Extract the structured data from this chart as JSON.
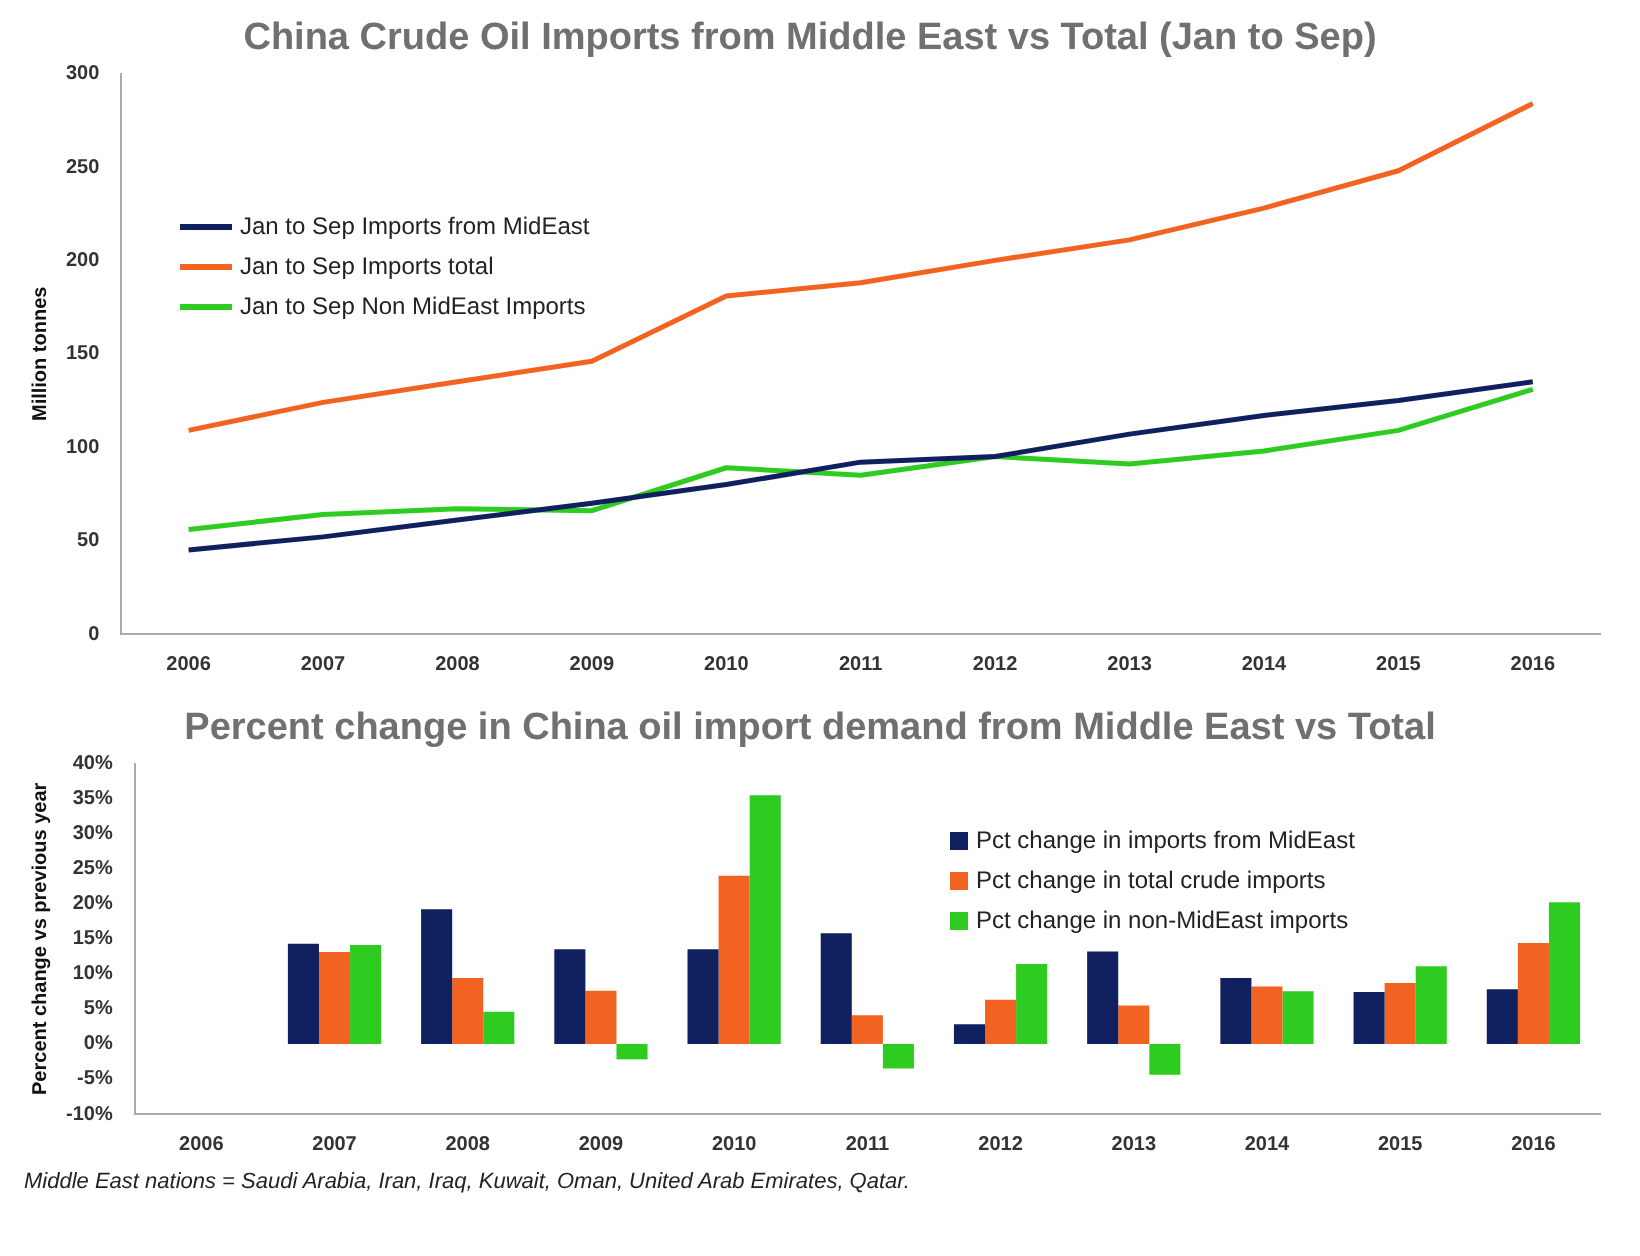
{
  "chart_data": [
    {
      "type": "line",
      "title": "China Crude Oil Imports from Middle East vs Total (Jan to Sep)",
      "ylabel": "Million tonnes",
      "categories": [
        "2006",
        "2007",
        "2008",
        "2009",
        "2010",
        "2011",
        "2012",
        "2013",
        "2014",
        "2015",
        "2016"
      ],
      "series": [
        {
          "name": "Jan to Sep Imports from MidEast",
          "color": "#10205e",
          "values": [
            45,
            52,
            61,
            70,
            80,
            92,
            95,
            107,
            117,
            125,
            135
          ]
        },
        {
          "name": "Jan to Sep Imports total",
          "color": "#f26322",
          "values": [
            109,
            124,
            135,
            146,
            181,
            188,
            200,
            211,
            228,
            248,
            284
          ]
        },
        {
          "name": "Jan to Sep Non MidEast Imports",
          "color": "#2ecc20",
          "values": [
            56,
            64,
            67,
            66,
            89,
            85,
            95,
            91,
            98,
            109,
            131
          ]
        }
      ],
      "ylim": [
        0,
        300
      ],
      "yticks": [
        0,
        50,
        100,
        150,
        200,
        250,
        300
      ],
      "grid": false,
      "legend": "top left",
      "marker": "none"
    },
    {
      "type": "bar",
      "title": "Percent change in China oil import demand from Middle East vs Total",
      "ylabel": "Percent change vs previous year",
      "categories": [
        "2006",
        "2007",
        "2008",
        "2009",
        "2010",
        "2011",
        "2012",
        "2013",
        "2014",
        "2015",
        "2016"
      ],
      "series": [
        {
          "name": "Pct change in imports from MidEast",
          "color": "#10205e",
          "values": [
            null,
            14.3,
            19.2,
            13.5,
            13.5,
            15.8,
            2.8,
            13.2,
            9.4,
            7.4,
            7.8
          ]
        },
        {
          "name": "Pct change in total crude imports",
          "color": "#f26322",
          "values": [
            null,
            13.1,
            9.4,
            7.6,
            24,
            4.1,
            6.3,
            5.5,
            8.2,
            8.7,
            14.4
          ]
        },
        {
          "name": "Pct change in non-MidEast imports",
          "color": "#2ecc20",
          "values": [
            null,
            14.1,
            4.6,
            -2.2,
            35.5,
            -3.5,
            11.4,
            -4.4,
            7.5,
            11.1,
            20.2
          ]
        }
      ],
      "ylim": [
        -10,
        40
      ],
      "yticks": [
        {
          "value": -10,
          "label": "-10%"
        },
        {
          "value": -5,
          "label": "-5%"
        },
        {
          "value": 0,
          "label": "0%"
        },
        {
          "value": 5,
          "label": "5%"
        },
        {
          "value": 10,
          "label": "10%"
        },
        {
          "value": 15,
          "label": "15%"
        },
        {
          "value": 20,
          "label": "20%"
        },
        {
          "value": 25,
          "label": "25%"
        },
        {
          "value": 30,
          "label": "30%"
        },
        {
          "value": 35,
          "label": "35%"
        },
        {
          "value": 40,
          "label": "40%"
        }
      ],
      "grid": false,
      "legend": "top right",
      "annotations": [
        "Middle East nations = Saudi Arabia, Iran, Iraq, Kuwait, Oman, United Arab Emirates, Qatar."
      ]
    }
  ]
}
